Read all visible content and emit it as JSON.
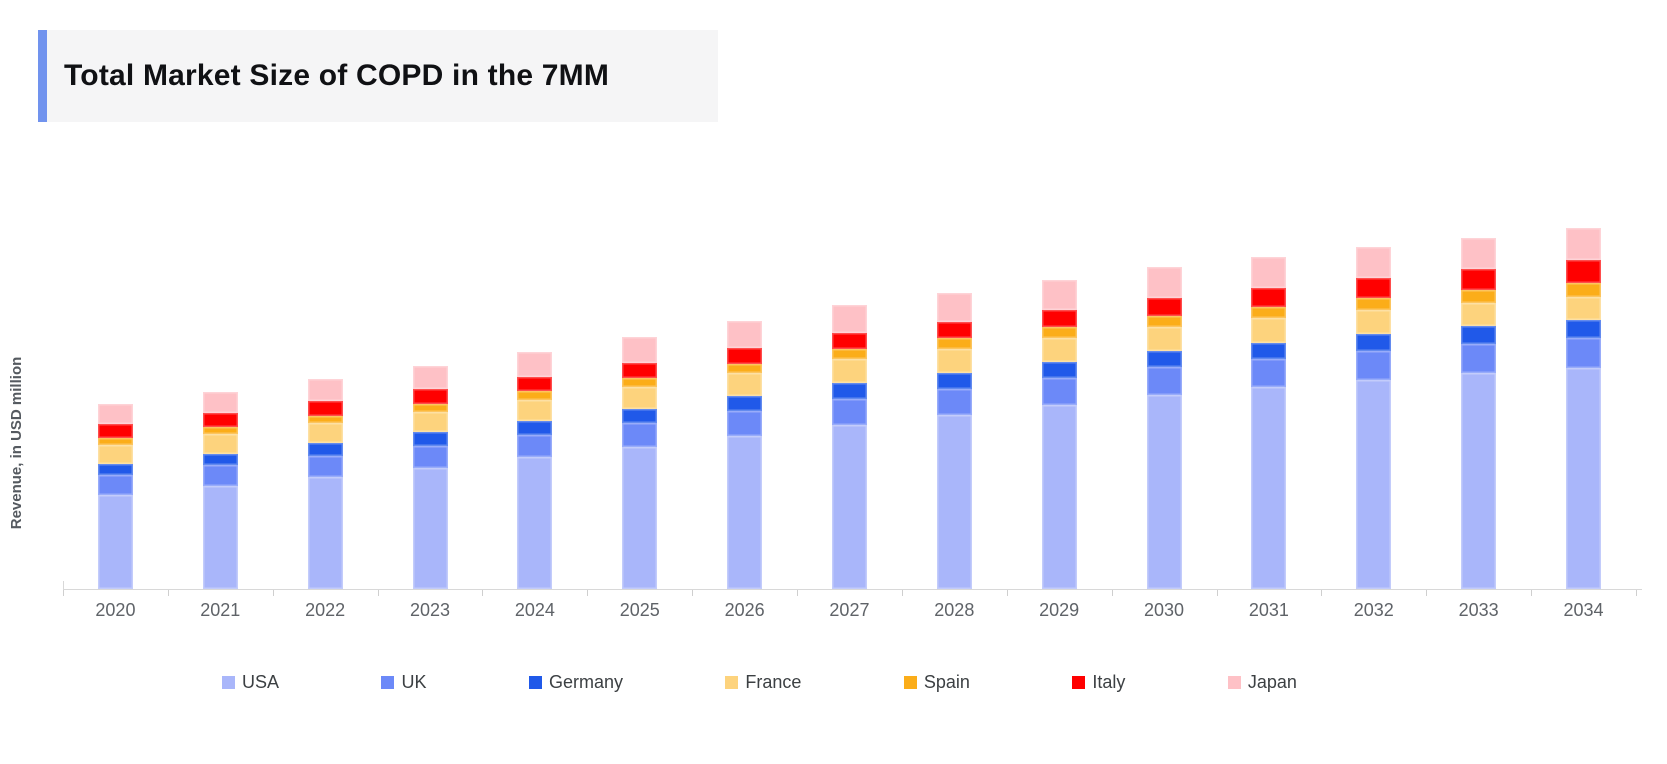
{
  "header": {
    "title": "Total Market Size of COPD in the 7MM",
    "accent_color": "#7193ee",
    "background_color": "#f5f5f6"
  },
  "y_axis_label": "Revenue, in USD million",
  "colors": {
    "axis_line": "#d8d8d8",
    "tick": "#cfcfcf",
    "x_label_text": "#5f6368",
    "legend_text": "#3c4043"
  },
  "chart_data": {
    "type": "bar",
    "stacked": true,
    "title": "Total Market Size of COPD in the 7MM",
    "xlabel": "",
    "ylabel": "Revenue, in USD million",
    "ylim": [
      0,
      4200
    ],
    "grid": false,
    "legend_position": "bottom",
    "categories": [
      "2020",
      "2021",
      "2022",
      "2023",
      "2024",
      "2025",
      "2026",
      "2027",
      "2028",
      "2029",
      "2030",
      "2031",
      "2032",
      "2033",
      "2034"
    ],
    "series": [
      {
        "name": "USA",
        "color": "#a9b6fa",
        "values": [
          940,
          1030,
          1120,
          1215,
          1316,
          1420,
          1530,
          1640,
          1740,
          1840,
          1940,
          2020,
          2095,
          2160,
          2210
        ]
      },
      {
        "name": "UK",
        "color": "#6c89f8",
        "values": [
          200,
          207,
          213,
          220,
          227,
          237,
          247,
          257,
          263,
          270,
          276,
          282,
          288,
          293,
          300
        ]
      },
      {
        "name": "Germany",
        "color": "#2059e9",
        "values": [
          110,
          118,
          125,
          133,
          140,
          147,
          153,
          160,
          160,
          160,
          160,
          163,
          167,
          175,
          183
        ]
      },
      {
        "name": "France",
        "color": "#fdd37d",
        "values": [
          190,
          194,
          198,
          202,
          207,
          218,
          229,
          240,
          242,
          245,
          247,
          242,
          238,
          233,
          230
        ]
      },
      {
        "name": "Spain",
        "color": "#fbad19",
        "values": [
          70,
          74,
          78,
          82,
          86,
          91,
          95,
          100,
          103,
          107,
          110,
          118,
          125,
          132,
          140
        ]
      },
      {
        "name": "Italy",
        "color": "#ff0000",
        "values": [
          140,
          142,
          144,
          146,
          148,
          152,
          156,
          160,
          166,
          172,
          178,
          186,
          194,
          205,
          225
        ]
      },
      {
        "name": "Japan",
        "color": "#fec1c6",
        "values": [
          200,
          210,
          221,
          232,
          243,
          257,
          270,
          283,
          291,
          298,
          306,
          308,
          310,
          312,
          323
        ]
      }
    ]
  }
}
